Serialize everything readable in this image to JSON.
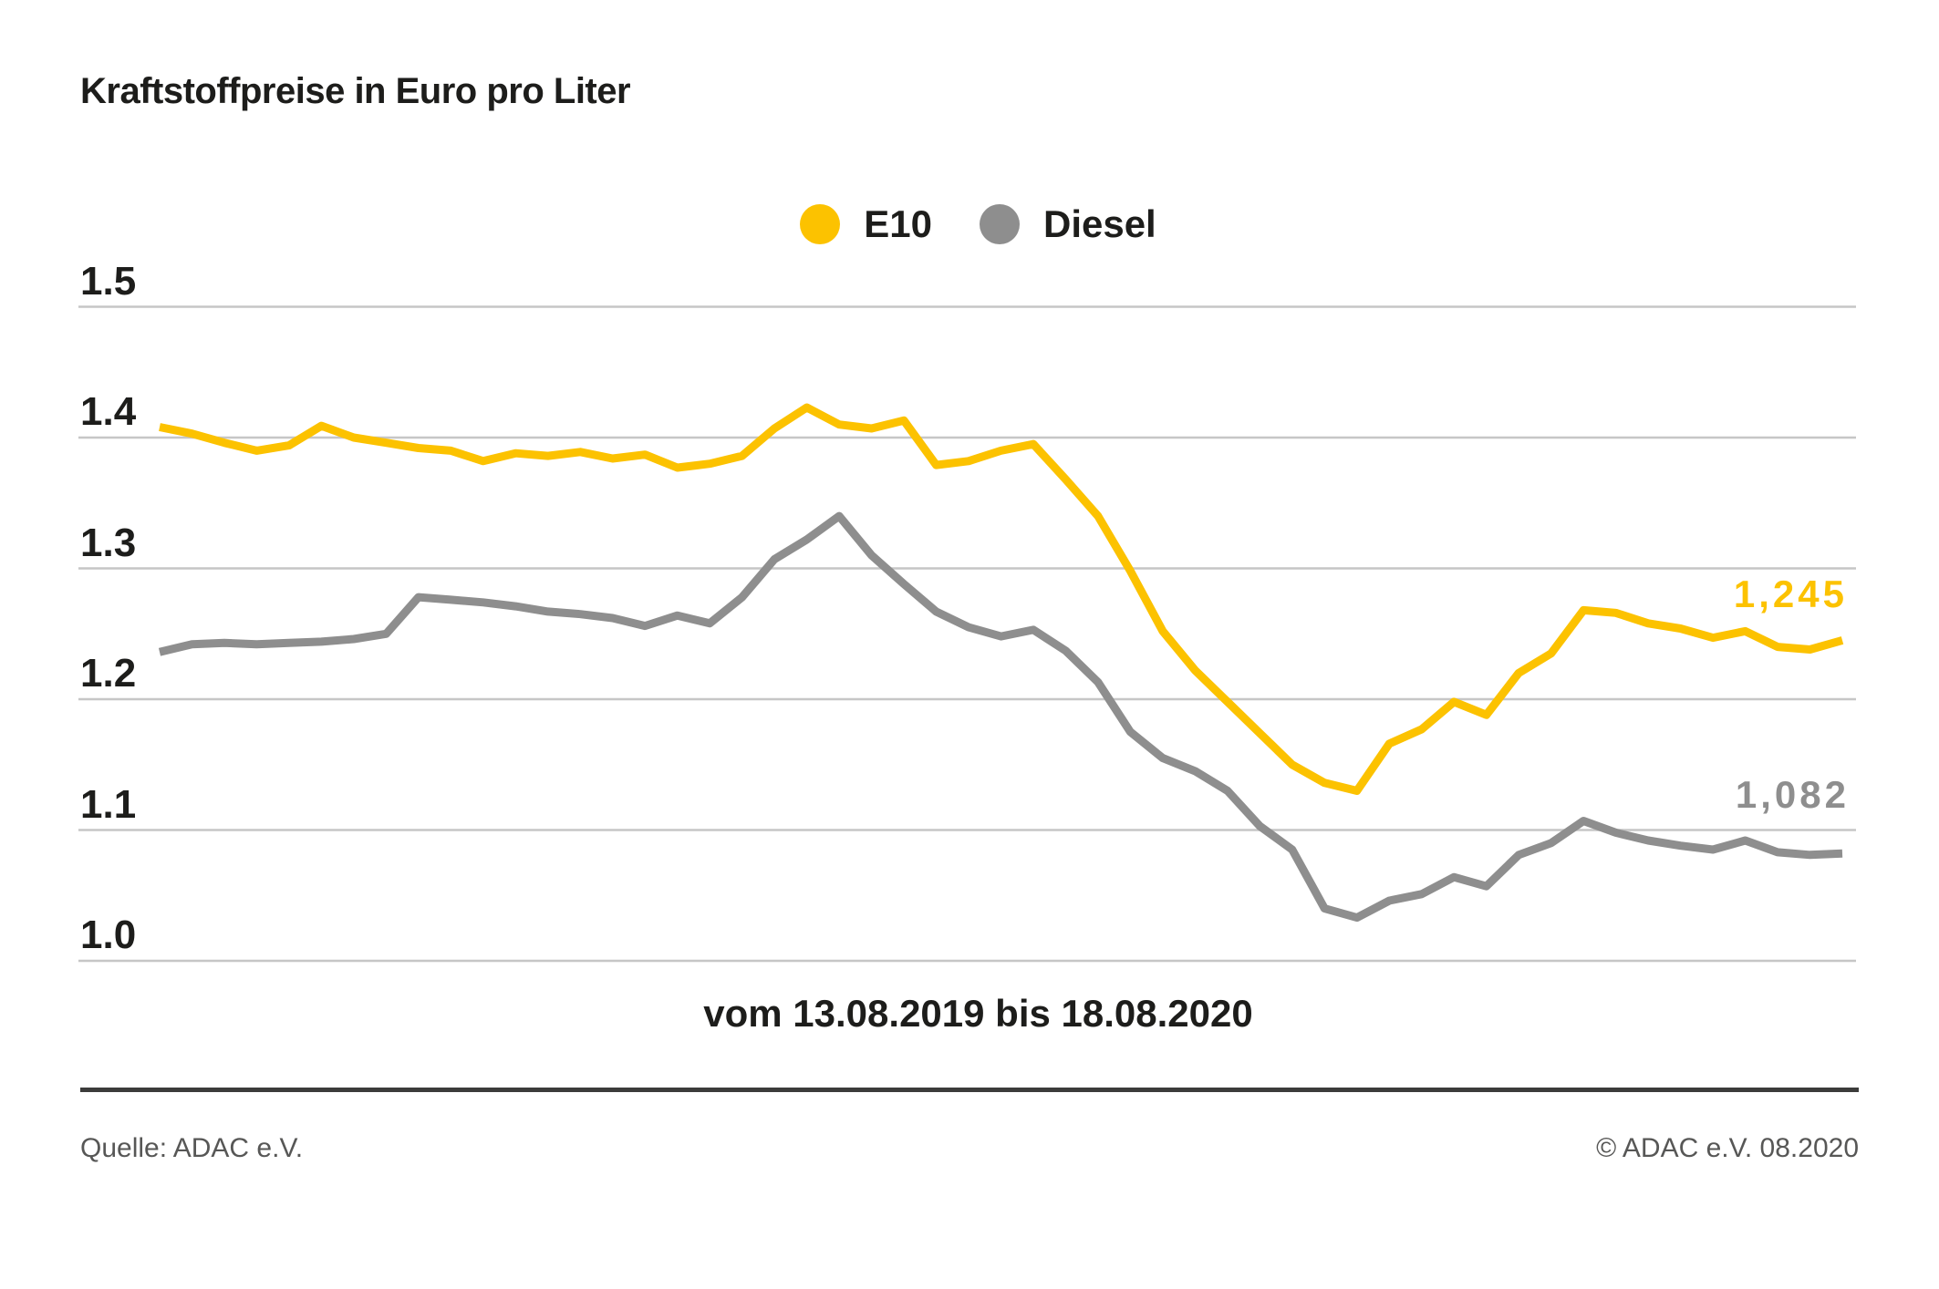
{
  "footer": {
    "source": "Quelle: ADAC e.V.",
    "copyright": "© ADAC e.V. 08.2020"
  },
  "chart_data": {
    "type": "line",
    "title": "Kraftstoffpreise in Euro pro Liter",
    "x_range_label": "vom 13.08.2019 bis 18.08.2020",
    "x_start": "13.08.2019",
    "x_end": "18.08.2020",
    "x_unit": "week",
    "ylabel": "Euro pro Liter",
    "y_ticks": [
      1.5,
      1.4,
      1.3,
      1.2,
      1.1,
      1.0
    ],
    "ylim": [
      0.97,
      1.53
    ],
    "grid": "horizontal-only",
    "grid_color": "#c6c6c6",
    "legend_position": "top-center",
    "text_color": "#1d1d1b",
    "series": [
      {
        "name": "E10",
        "color": "#fcc200",
        "end_label": "1,245",
        "end_value": 1.245,
        "values": [
          1.408,
          1.403,
          1.396,
          1.39,
          1.394,
          1.409,
          1.4,
          1.396,
          1.392,
          1.39,
          1.382,
          1.388,
          1.386,
          1.389,
          1.384,
          1.387,
          1.377,
          1.38,
          1.386,
          1.407,
          1.423,
          1.41,
          1.407,
          1.413,
          1.379,
          1.382,
          1.39,
          1.395,
          1.368,
          1.34,
          1.298,
          1.252,
          1.222,
          1.198,
          1.174,
          1.15,
          1.136,
          1.13,
          1.166,
          1.177,
          1.198,
          1.188,
          1.22,
          1.235,
          1.268,
          1.266,
          1.258,
          1.254,
          1.247,
          1.252,
          1.24,
          1.238,
          1.245
        ]
      },
      {
        "name": "Diesel",
        "color": "#8e8e8e",
        "end_label": "1,082",
        "end_value": 1.082,
        "values": [
          1.236,
          1.242,
          1.243,
          1.242,
          1.243,
          1.244,
          1.246,
          1.25,
          1.278,
          1.276,
          1.274,
          1.271,
          1.267,
          1.265,
          1.262,
          1.256,
          1.264,
          1.258,
          1.278,
          1.307,
          1.322,
          1.34,
          1.31,
          1.288,
          1.267,
          1.255,
          1.248,
          1.253,
          1.237,
          1.213,
          1.175,
          1.155,
          1.145,
          1.13,
          1.103,
          1.085,
          1.04,
          1.033,
          1.046,
          1.051,
          1.064,
          1.057,
          1.081,
          1.09,
          1.107,
          1.098,
          1.092,
          1.088,
          1.085,
          1.092,
          1.083,
          1.081,
          1.082
        ]
      }
    ]
  }
}
